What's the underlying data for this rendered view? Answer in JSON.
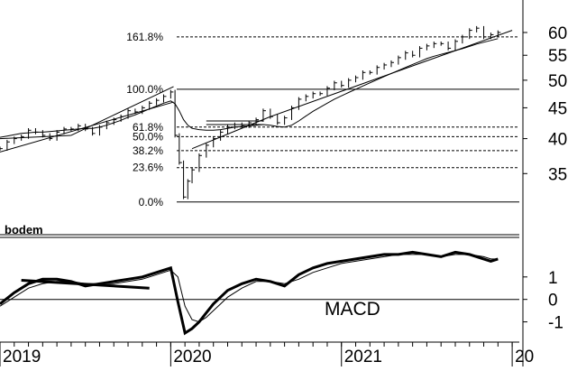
{
  "chart_data": [
    {
      "type": "line",
      "subtype": "ohlc-bar",
      "title": "",
      "yscale": "log",
      "ylim": [
        28,
        67
      ],
      "y_ticks": [
        35,
        40,
        45,
        50,
        55,
        60
      ],
      "x_ticks": [
        {
          "label": "2019",
          "t": 0
        },
        {
          "label": "2020",
          "t": 12
        },
        {
          "label": "2021",
          "t": 24
        },
        {
          "label": "20",
          "t": 36
        }
      ],
      "xlim": [
        0,
        36.5
      ],
      "grid": false,
      "annotation": "bodem",
      "fib_levels": [
        {
          "label": "161.8%",
          "value": 59.0
        },
        {
          "label": "100.0%",
          "value": 48.3
        },
        {
          "label": "61.8%",
          "value": 41.8
        },
        {
          "label": "50.0%",
          "value": 40.3
        },
        {
          "label": "38.2%",
          "value": 38.2
        },
        {
          "label": "23.6%",
          "value": 35.8
        },
        {
          "label": "0.0%",
          "value": 31.4
        }
      ],
      "price": {
        "t": [
          0,
          0.5,
          1,
          1.5,
          2,
          2.5,
          3,
          3.5,
          4,
          4.5,
          5,
          5.5,
          6,
          6.5,
          7,
          7.5,
          8,
          8.5,
          9,
          9.5,
          10,
          10.5,
          11,
          11.5,
          12,
          12.3,
          12.6,
          12.9,
          13.2,
          13.5,
          14,
          14.5,
          15,
          15.5,
          16,
          16.5,
          17,
          17.5,
          18,
          18.5,
          19,
          19.5,
          20,
          20.5,
          21,
          21.5,
          22,
          22.5,
          23,
          23.5,
          24,
          24.5,
          25,
          25.5,
          26,
          26.5,
          27,
          27.5,
          28,
          28.5,
          29,
          29.5,
          30,
          30.5,
          31,
          31.5,
          32,
          32.5,
          33,
          33.5,
          34,
          34.5,
          35
        ],
        "close": [
          38.5,
          39.5,
          40.0,
          40.3,
          41.3,
          41.0,
          40.5,
          40.0,
          41.0,
          41.5,
          41.5,
          42.0,
          41.5,
          40.8,
          41.8,
          42.5,
          43.0,
          43.5,
          44.5,
          44.3,
          45.0,
          45.8,
          46.3,
          47.0,
          47.8,
          40.5,
          36.5,
          32.0,
          34.0,
          35.5,
          37.5,
          39.0,
          40.0,
          41.0,
          41.8,
          42.2,
          42.0,
          42.5,
          43.0,
          44.5,
          43.5,
          42.5,
          43.3,
          45.0,
          46.5,
          47.0,
          47.5,
          47.5,
          48.5,
          49.5,
          49.0,
          50.0,
          50.5,
          51.5,
          51.5,
          52.5,
          53.0,
          53.5,
          54.5,
          55.5,
          55.0,
          56.5,
          57.0,
          57.5,
          57.5,
          56.5,
          58.0,
          59.0,
          60.5,
          61.0,
          59.0,
          59.5,
          60.0
        ],
        "sma_short": [
          40.2,
          40.4,
          40.6,
          40.8,
          40.9,
          41.0,
          41.0,
          41.1,
          41.2,
          41.3,
          41.4,
          41.5,
          41.6,
          41.6,
          41.8,
          42.1,
          42.5,
          42.9,
          43.4,
          43.8,
          44.3,
          44.8,
          45.3,
          45.8,
          46.2,
          45.7,
          44.5,
          43.0,
          42.1,
          41.6,
          41.4,
          41.3,
          41.3,
          41.4,
          41.6,
          41.8,
          41.9,
          42.0,
          42.1,
          42.2,
          42.1,
          41.9,
          41.8,
          42.1,
          42.8,
          43.6,
          44.4,
          45.1,
          45.8,
          46.5,
          47.1,
          47.7,
          48.3,
          48.9,
          49.5,
          50.1,
          50.7,
          51.3,
          51.9,
          52.5,
          53.1,
          53.7,
          54.3,
          54.8,
          55.2,
          55.6,
          56.0,
          56.4,
          56.9,
          57.4,
          57.8,
          58.2,
          58.6
        ]
      },
      "trend_lines": [
        {
          "from": [
            0,
            38.0
          ],
          "to": [
            12.2,
            46.0
          ]
        },
        {
          "from": [
            5,
            40.5
          ],
          "to": [
            12.2,
            48.8
          ]
        },
        {
          "from": [
            0,
            40.0
          ],
          "to": [
            5,
            40.5
          ]
        },
        {
          "from": [
            13.5,
            38.5
          ],
          "to": [
            19,
            43.5
          ]
        },
        {
          "from": [
            19,
            43.5
          ],
          "to": [
            36,
            60.5
          ]
        },
        {
          "from": [
            14.5,
            42.2
          ],
          "to": [
            18.5,
            42.2
          ]
        },
        {
          "from": [
            14.5,
            42.8
          ],
          "to": [
            18.5,
            42.8
          ]
        }
      ]
    },
    {
      "type": "line",
      "title": "",
      "label": "MACD",
      "ylim": [
        -1.7,
        2.8
      ],
      "y_ticks": [
        -1,
        0,
        1
      ],
      "zero_line": true,
      "series": [
        {
          "role": "macd",
          "t": [
            0,
            1,
            2,
            3,
            4,
            5,
            6,
            7,
            8,
            9,
            10,
            11,
            12,
            12.5,
            13,
            13.5,
            14,
            14.5,
            15,
            15.5,
            16,
            17,
            18,
            19,
            20,
            21,
            22,
            23,
            24,
            25,
            26,
            27,
            28,
            29,
            30,
            31,
            32,
            33,
            34,
            34.5,
            35
          ],
          "values": [
            -0.2,
            0.3,
            0.7,
            0.9,
            0.9,
            0.8,
            0.6,
            0.7,
            0.8,
            0.9,
            1.0,
            1.2,
            1.4,
            -0.1,
            -1.5,
            -1.3,
            -1.0,
            -0.6,
            -0.2,
            0.1,
            0.4,
            0.7,
            0.9,
            0.8,
            0.6,
            1.1,
            1.4,
            1.6,
            1.7,
            1.8,
            1.9,
            2.0,
            2.0,
            2.1,
            2.0,
            1.9,
            2.1,
            2.0,
            1.8,
            1.7,
            1.8
          ]
        },
        {
          "role": "signal",
          "t": [
            0,
            1,
            2,
            3,
            4,
            5,
            6,
            7,
            8,
            9,
            10,
            11,
            12,
            12.5,
            13,
            13.5,
            14,
            14.5,
            15,
            15.5,
            16,
            17,
            18,
            19,
            20,
            21,
            22,
            23,
            24,
            25,
            26,
            27,
            28,
            29,
            30,
            31,
            32,
            33,
            34,
            34.5,
            35
          ],
          "values": [
            -0.3,
            0.1,
            0.5,
            0.7,
            0.8,
            0.8,
            0.7,
            0.7,
            0.7,
            0.8,
            0.9,
            1.1,
            1.3,
            1.0,
            -0.3,
            -0.9,
            -1.0,
            -0.8,
            -0.5,
            -0.2,
            0.1,
            0.5,
            0.8,
            0.8,
            0.7,
            0.9,
            1.2,
            1.4,
            1.6,
            1.7,
            1.8,
            1.9,
            2.0,
            2.0,
            2.0,
            1.9,
            2.0,
            2.0,
            1.9,
            1.8,
            1.8
          ]
        }
      ],
      "trend_lines": [
        {
          "from": [
            1.5,
            0.85
          ],
          "to": [
            10.5,
            0.5
          ]
        }
      ]
    }
  ]
}
